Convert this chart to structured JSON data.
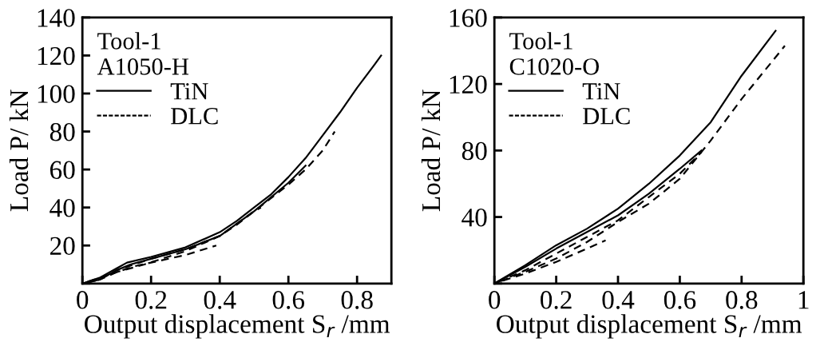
{
  "chart_data": [
    {
      "type": "line",
      "xlabel": "Output displacement S$_{r}$ /mm",
      "ylabel": "Load P/ kN",
      "legend_title": "Tool-1\nA1050-H",
      "legend": "top left",
      "grid": false,
      "xlim": [
        0,
        0.9
      ],
      "xticks": [
        0,
        0.2,
        0.4,
        0.6,
        0.8
      ],
      "ylim": [
        0,
        140
      ],
      "yticks": [
        {
          "value": 0,
          "label": null
        },
        20,
        40,
        60,
        80,
        100,
        120,
        140
      ],
      "series": [
        {
          "name": "TiN",
          "color": "#000000",
          "line_style": "solid",
          "x": [
            0,
            0.05,
            0.1,
            0.13,
            0.2,
            0.3,
            0.4,
            0.45,
            0.5,
            0.55,
            0.6,
            0.65,
            0.7,
            0.75,
            0.8,
            0.85,
            0.87
          ],
          "values": [
            0,
            3,
            8,
            11,
            14,
            19,
            27,
            33,
            40,
            47,
            56,
            66,
            78,
            90,
            103,
            115,
            120
          ]
        },
        {
          "color": "#000000",
          "line_style": "solid",
          "x": [
            0,
            0.05,
            0.1,
            0.14,
            0.2,
            0.3,
            0.4,
            0.5,
            0.6,
            0.65
          ],
          "values": [
            0,
            2,
            7,
            10,
            13,
            18,
            25,
            38,
            53,
            62
          ]
        },
        {
          "name": "DLC",
          "color": "#000000",
          "line_style": "dashed",
          "x": [
            0,
            0.05,
            0.1,
            0.15,
            0.2,
            0.3,
            0.4,
            0.5,
            0.6,
            0.65,
            0.7,
            0.735
          ],
          "values": [
            0,
            2,
            7,
            10,
            13,
            18,
            25,
            38,
            52,
            60,
            70,
            80
          ]
        },
        {
          "color": "#000000",
          "line_style": "dashed",
          "x": [
            0,
            0.05,
            0.1,
            0.15,
            0.2,
            0.3,
            0.39
          ],
          "values": [
            0,
            2,
            6,
            9,
            11,
            15,
            20
          ]
        },
        {
          "color": "#000000",
          "line_style": "dashed",
          "x": [
            0,
            0.1,
            0.18,
            0.3,
            0.4,
            0.45,
            0.5,
            0.52
          ],
          "values": [
            0,
            6,
            10,
            17,
            25,
            31,
            38,
            40
          ]
        }
      ]
    },
    {
      "type": "line",
      "xlabel": "Output displacement S$_{r}$ /mm",
      "ylabel": "Load P/ kN",
      "legend_title": "Tool-1\nC1020-O",
      "legend": "top left",
      "grid": false,
      "xlim": [
        0,
        1
      ],
      "xticks": [
        0,
        0.2,
        0.4,
        0.6,
        0.8,
        1
      ],
      "ylim": [
        0,
        160
      ],
      "yticks": [
        {
          "value": 0,
          "label": null
        },
        40,
        80,
        120,
        160
      ],
      "series": [
        {
          "name": "TiN",
          "color": "#000000",
          "line_style": "solid",
          "x": [
            0,
            0.1,
            0.2,
            0.3,
            0.4,
            0.5,
            0.6,
            0.68,
            0.7,
            0.8,
            0.91
          ],
          "values": [
            0,
            11,
            23,
            33,
            45,
            60,
            77,
            93,
            97,
            125,
            152
          ]
        },
        {
          "color": "#000000",
          "line_style": "solid",
          "x": [
            0,
            0.1,
            0.2,
            0.3,
            0.4,
            0.5,
            0.6,
            0.67
          ],
          "values": [
            0,
            10,
            21,
            31,
            41,
            54,
            69,
            80
          ]
        },
        {
          "name": "DLC",
          "color": "#000000",
          "line_style": "dashed",
          "x": [
            0,
            0.1,
            0.2,
            0.3,
            0.4,
            0.5,
            0.6,
            0.7,
            0.8,
            0.94
          ],
          "values": [
            0,
            7,
            15,
            25,
            37,
            48,
            63,
            86,
            111,
            143
          ]
        },
        {
          "color": "#000000",
          "line_style": "dashed",
          "x": [
            0,
            0.1,
            0.2,
            0.3,
            0.36
          ],
          "values": [
            0,
            6,
            13,
            21,
            26
          ]
        },
        {
          "color": "#000000",
          "line_style": "dashed",
          "x": [
            0,
            0.1,
            0.2,
            0.3,
            0.4,
            0.5,
            0.6,
            0.67
          ],
          "values": [
            0,
            8,
            18,
            28,
            38,
            52,
            66,
            79
          ]
        }
      ]
    }
  ]
}
